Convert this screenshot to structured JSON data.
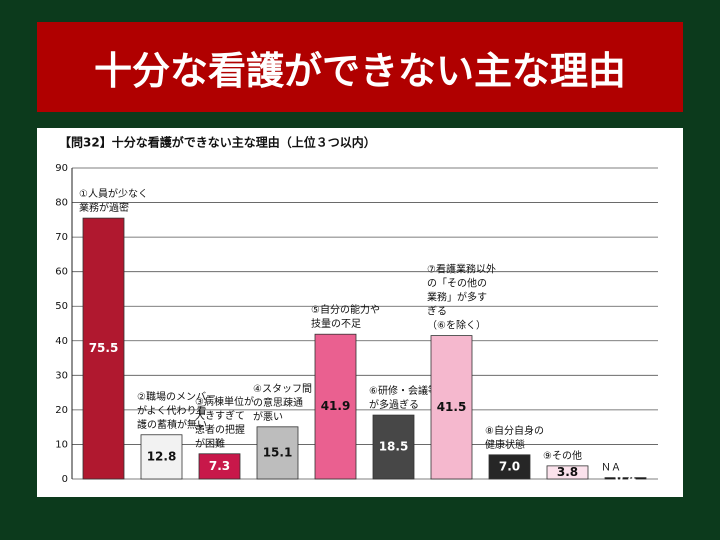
{
  "header": {
    "title": "十分な看護ができない主な理由"
  },
  "chart_data": {
    "type": "bar",
    "title": "【問32】十分な看護ができない主な理由（上位３つ以内）",
    "categories": [
      [
        "①人員が少なく",
        "業務が過密"
      ],
      [
        "②職場のメンバー",
        "がよく代わり看",
        "護の蓄積が無い"
      ],
      [
        "③病棟単位が",
        "大きすぎて",
        "患者の把握",
        "が困難"
      ],
      [
        "④スタッフ間",
        "の意思疎通",
        "が悪い"
      ],
      [
        "⑤自分の能力や",
        "技量の不足"
      ],
      [
        "⑥研修・会議等",
        "が多過ぎる"
      ],
      [
        "⑦看護業務以外",
        "の「その他の",
        "業務」が多す",
        "ぎる",
        "（⑥を除く）"
      ],
      [
        "⑧自分自身の",
        "健康状態"
      ],
      [
        "⑨その他"
      ],
      [
        "ＮＡ"
      ]
    ],
    "values": [
      75.5,
      12.8,
      7.3,
      15.1,
      41.9,
      18.5,
      41.5,
      7.0,
      3.8,
      0.4
    ],
    "value_labels": [
      "75.5",
      "12.8",
      "7.3",
      "15.1",
      "41.9",
      "18.5",
      "41.5",
      "7.0",
      "3.8",
      "0.4"
    ],
    "colors": [
      "#b0182f",
      "#f2f2f2",
      "#c8184a",
      "#bdbdbd",
      "#ea6090",
      "#474747",
      "#f5b8ce",
      "#262626",
      "#fbe2ec",
      "#111111"
    ],
    "ylim": [
      0,
      90
    ],
    "yticks": [
      0,
      10,
      20,
      30,
      40,
      50,
      60,
      70,
      80,
      90
    ],
    "grid": true
  }
}
